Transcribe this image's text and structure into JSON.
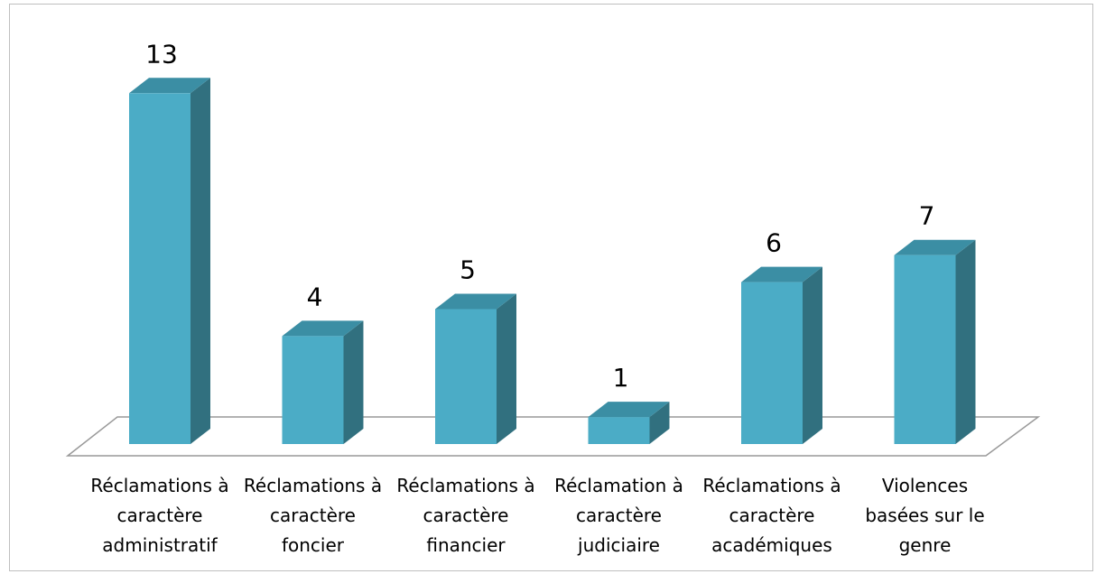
{
  "chart_data": {
    "type": "bar3d",
    "categories": [
      "Réclamations à caractère administratif",
      "Réclamations à caractère foncier",
      "Réclamations à caractère financier",
      "Réclamation à caractère judiciaire",
      "Réclamations à caractère académiques",
      "Violences basées sur le genre"
    ],
    "values": [
      13,
      4,
      5,
      1,
      6,
      7
    ],
    "color": "#4bacc6"
  }
}
